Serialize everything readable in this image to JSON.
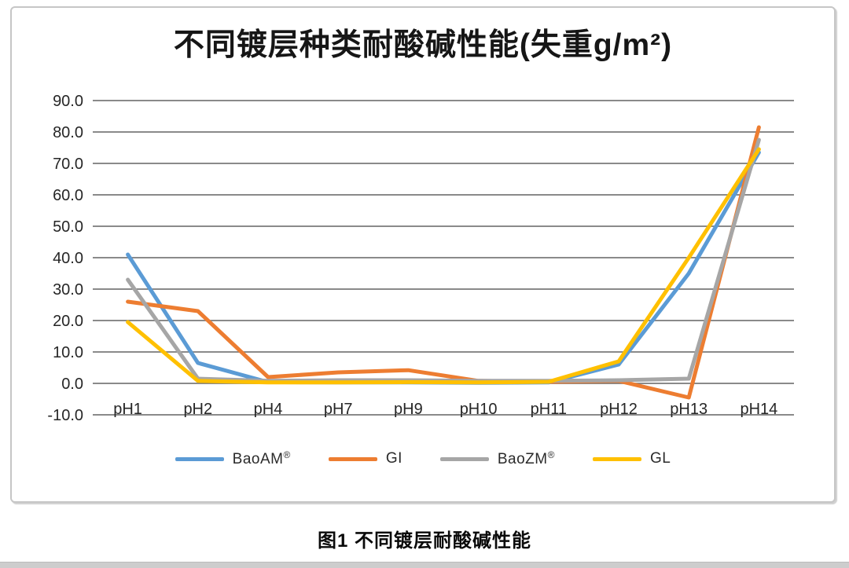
{
  "caption": "图1 不同镀层耐酸碱性能",
  "chart_data": {
    "type": "line",
    "title": "不同镀层种类耐酸碱性能(失重g/m²)",
    "xlabel": "",
    "ylabel": "",
    "categories": [
      "pH1",
      "pH2",
      "pH4",
      "pH7",
      "pH9",
      "pH10",
      "pH11",
      "pH12",
      "pH13",
      "pH14"
    ],
    "series": [
      {
        "name": "BaoAM",
        "sup": "®",
        "color": "#5B9BD5",
        "values": [
          41.0,
          6.5,
          0.4,
          0.3,
          0.3,
          0.2,
          0.3,
          6.0,
          35.0,
          73.5
        ]
      },
      {
        "name": "GI",
        "sup": "",
        "color": "#ED7D31",
        "values": [
          26.0,
          23.0,
          2.0,
          3.5,
          4.2,
          0.8,
          0.5,
          0.8,
          -4.5,
          81.5
        ]
      },
      {
        "name": "BaoZM",
        "sup": "®",
        "color": "#A6A6A6",
        "values": [
          33.0,
          1.5,
          0.8,
          1.0,
          1.0,
          0.8,
          0.8,
          1.0,
          1.5,
          77.5
        ]
      },
      {
        "name": "GL",
        "sup": "",
        "color": "#FFC000",
        "values": [
          19.5,
          0.8,
          0.3,
          0.3,
          0.4,
          0.3,
          0.5,
          7.0,
          40.0,
          74.5
        ]
      }
    ],
    "ylim": [
      -10,
      90
    ],
    "ytick_step": 10,
    "ytick_format_decimals": 1,
    "grid": true,
    "gridline_color": "#7a7a7a",
    "tick_label_color": "#262626",
    "legend_position": "bottom"
  }
}
